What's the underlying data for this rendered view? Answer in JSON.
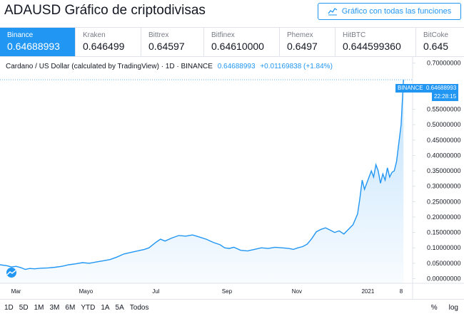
{
  "header": {
    "title": "ADAUSD Gráfico de criptodivisas",
    "full_chart_button": "Gráfico con todas las funciones"
  },
  "exchanges": [
    {
      "name": "Binance",
      "price": "0.64688993",
      "active": true
    },
    {
      "name": "Kraken",
      "price": "0.646499",
      "active": false
    },
    {
      "name": "Bittrex",
      "price": "0.64597",
      "active": false
    },
    {
      "name": "Bitfinex",
      "price": "0.64610000",
      "active": false
    },
    {
      "name": "Phemex",
      "price": "0.6497",
      "active": false
    },
    {
      "name": "HitBTC",
      "price": "0.644599360",
      "active": false
    },
    {
      "name": "BitCoke",
      "price": "0.645",
      "active": false
    }
  ],
  "legend": {
    "title": "Cardano / US Dollar (calculated by TradingView) · 1D · BINANCE",
    "price": "0.64688993",
    "change": "+0.01169838 (+1.84%)"
  },
  "price_tag": {
    "label": "BINANCE",
    "price": "0.64688993",
    "countdown": "22:28:15"
  },
  "chart_data": {
    "type": "area",
    "ylim": [
      -0.015,
      0.72
    ],
    "y_ticks": [
      {
        "v": 0.7,
        "label": "0.70000000"
      },
      {
        "v": 0.55,
        "label": "0.55000000"
      },
      {
        "v": 0.5,
        "label": "0.50000000"
      },
      {
        "v": 0.45,
        "label": "0.45000000"
      },
      {
        "v": 0.4,
        "label": "0.40000000"
      },
      {
        "v": 0.35,
        "label": "0.35000000"
      },
      {
        "v": 0.3,
        "label": "0.30000000"
      },
      {
        "v": 0.25,
        "label": "0.25000000"
      },
      {
        "v": 0.2,
        "label": "0.20000000"
      },
      {
        "v": 0.15,
        "label": "0.15000000"
      },
      {
        "v": 0.1,
        "label": "0.10000000"
      },
      {
        "v": 0.05,
        "label": "0.05000000"
      },
      {
        "v": 0.0,
        "label": "0.00000000"
      }
    ],
    "x_ticks": [
      {
        "t": 14,
        "label": "Mar"
      },
      {
        "t": 75,
        "label": "Mayo"
      },
      {
        "t": 136,
        "label": "Jul"
      },
      {
        "t": 198,
        "label": "Sep"
      },
      {
        "t": 259,
        "label": "Nov"
      },
      {
        "t": 321,
        "label": "2021"
      },
      {
        "t": 350,
        "label": "8"
      }
    ],
    "series": [
      {
        "values": [
          [
            0,
            0.045
          ],
          [
            6,
            0.042
          ],
          [
            10,
            0.038
          ],
          [
            14,
            0.04
          ],
          [
            18,
            0.036
          ],
          [
            22,
            0.03
          ],
          [
            26,
            0.033
          ],
          [
            30,
            0.032
          ],
          [
            36,
            0.034
          ],
          [
            42,
            0.035
          ],
          [
            48,
            0.037
          ],
          [
            54,
            0.04
          ],
          [
            60,
            0.045
          ],
          [
            66,
            0.048
          ],
          [
            72,
            0.052
          ],
          [
            78,
            0.05
          ],
          [
            84,
            0.054
          ],
          [
            90,
            0.058
          ],
          [
            96,
            0.062
          ],
          [
            102,
            0.07
          ],
          [
            108,
            0.08
          ],
          [
            114,
            0.085
          ],
          [
            120,
            0.09
          ],
          [
            126,
            0.095
          ],
          [
            130,
            0.1
          ],
          [
            136,
            0.118
          ],
          [
            140,
            0.128
          ],
          [
            144,
            0.122
          ],
          [
            150,
            0.132
          ],
          [
            156,
            0.14
          ],
          [
            162,
            0.138
          ],
          [
            168,
            0.142
          ],
          [
            174,
            0.135
          ],
          [
            180,
            0.128
          ],
          [
            186,
            0.118
          ],
          [
            192,
            0.11
          ],
          [
            196,
            0.1
          ],
          [
            200,
            0.098
          ],
          [
            204,
            0.102
          ],
          [
            210,
            0.092
          ],
          [
            216,
            0.09
          ],
          [
            222,
            0.095
          ],
          [
            228,
            0.1
          ],
          [
            234,
            0.098
          ],
          [
            240,
            0.102
          ],
          [
            246,
            0.1
          ],
          [
            252,
            0.098
          ],
          [
            256,
            0.095
          ],
          [
            260,
            0.1
          ],
          [
            264,
            0.104
          ],
          [
            268,
            0.112
          ],
          [
            272,
            0.13
          ],
          [
            276,
            0.152
          ],
          [
            280,
            0.16
          ],
          [
            284,
            0.165
          ],
          [
            288,
            0.158
          ],
          [
            292,
            0.15
          ],
          [
            296,
            0.155
          ],
          [
            300,
            0.145
          ],
          [
            304,
            0.16
          ],
          [
            308,
            0.175
          ],
          [
            312,
            0.21
          ],
          [
            314,
            0.26
          ],
          [
            316,
            0.32
          ],
          [
            318,
            0.29
          ],
          [
            320,
            0.31
          ],
          [
            322,
            0.33
          ],
          [
            324,
            0.35
          ],
          [
            326,
            0.33
          ],
          [
            328,
            0.37
          ],
          [
            330,
            0.35
          ],
          [
            332,
            0.31
          ],
          [
            334,
            0.34
          ],
          [
            336,
            0.32
          ],
          [
            338,
            0.36
          ],
          [
            340,
            0.33
          ],
          [
            342,
            0.345
          ],
          [
            344,
            0.35
          ],
          [
            346,
            0.38
          ],
          [
            348,
            0.44
          ],
          [
            350,
            0.5
          ],
          [
            352,
            0.646
          ]
        ]
      }
    ]
  },
  "range_buttons": [
    "1D",
    "5D",
    "1M",
    "3M",
    "6M",
    "YTD",
    "1A",
    "5A",
    "Todos"
  ],
  "scale_toggles": [
    "%",
    "log"
  ],
  "colors": {
    "accent": "#2196f3",
    "area_fill": "#e3f0fd",
    "text": "#131722",
    "muted": "#787b86",
    "border": "#e0e3eb"
  }
}
